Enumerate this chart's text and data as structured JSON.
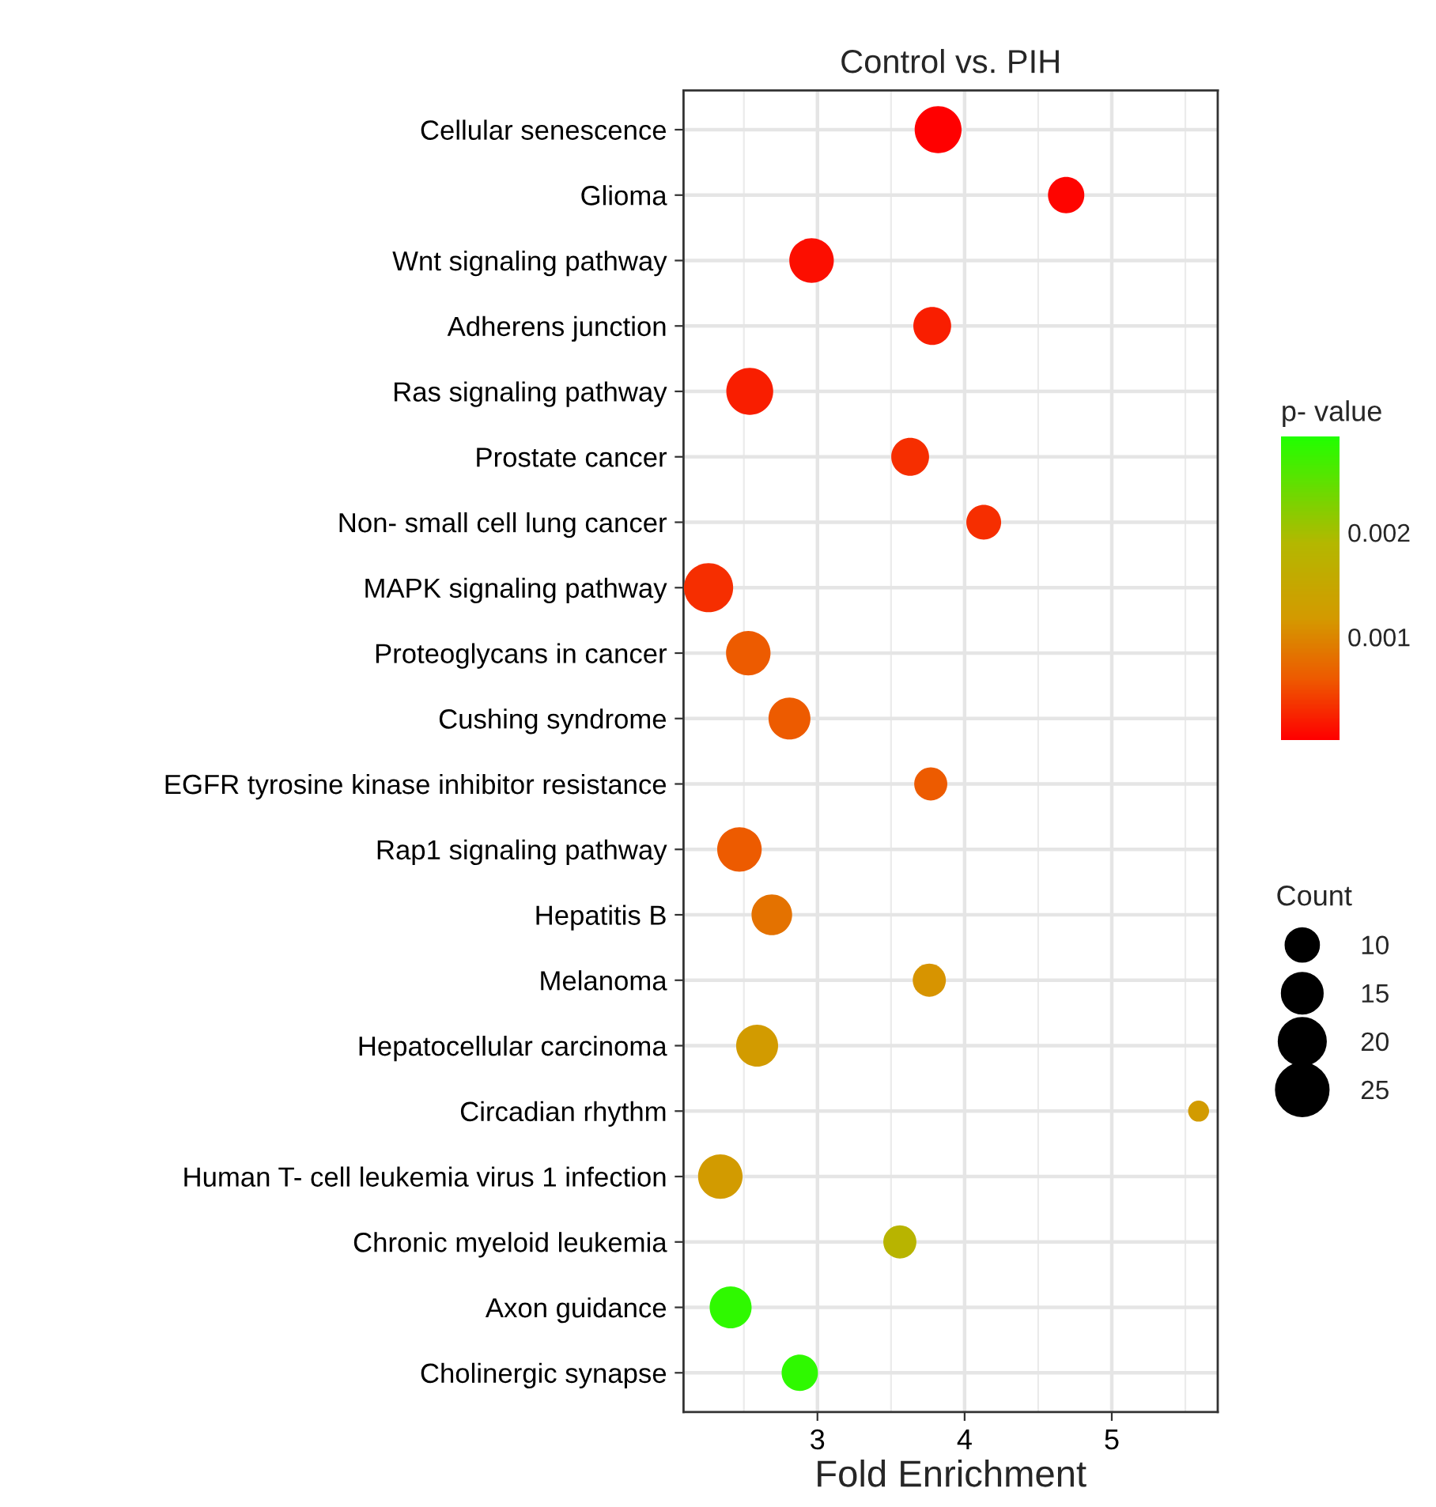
{
  "chart_data": {
    "type": "bubble",
    "title": "Control vs. PIH",
    "xlabel": "Fold Enrichment",
    "clabel": "p- value",
    "legend_title": "Count",
    "categories": [
      "Cellular senescence",
      "Glioma",
      "Wnt signaling pathway",
      "Adherens junction",
      "Ras signaling pathway",
      "Prostate cancer",
      "Non- small cell lung cancer",
      "MAPK signaling pathway",
      "Proteoglycans in cancer",
      "Cushing syndrome",
      "EGFR tyrosine kinase inhibitor resistance",
      "Rap1 signaling pathway",
      "Hepatitis B",
      "Melanoma",
      "Hepatocellular carcinoma",
      "Circadian rhythm",
      "Human T- cell leukemia virus 1 infection",
      "Chronic myeloid leukemia",
      "Axon guidance",
      "Cholinergic synapse"
    ],
    "orientation": "horizontal",
    "values": [
      3.82,
      4.69,
      2.96,
      3.78,
      2.54,
      3.63,
      4.13,
      2.26,
      2.53,
      2.81,
      3.77,
      2.47,
      2.69,
      3.76,
      2.59,
      5.59,
      2.34,
      3.56,
      2.41,
      2.88
    ],
    "sizes": [
      20,
      12,
      18,
      13,
      20,
      13,
      11,
      22,
      18,
      16,
      10,
      18,
      15,
      10,
      16,
      4,
      18,
      10,
      16,
      12
    ],
    "size_legend": [
      10,
      15,
      20,
      25
    ],
    "cvalues": [
      1e-05,
      3e-05,
      0.0001,
      0.0002,
      0.0002,
      0.0003,
      0.0003,
      0.0003,
      0.0006,
      0.0006,
      0.0006,
      0.0006,
      0.0008,
      0.0011,
      0.0012,
      0.0012,
      0.0012,
      0.0018,
      0.0028,
      0.0028
    ],
    "clim": [
      0,
      0.0029
    ],
    "cticks": [
      0.001,
      0.002
    ],
    "xlim": [
      2.09,
      5.72
    ],
    "xticks": [
      3,
      4,
      5
    ],
    "grid": true,
    "marker": "circle"
  }
}
